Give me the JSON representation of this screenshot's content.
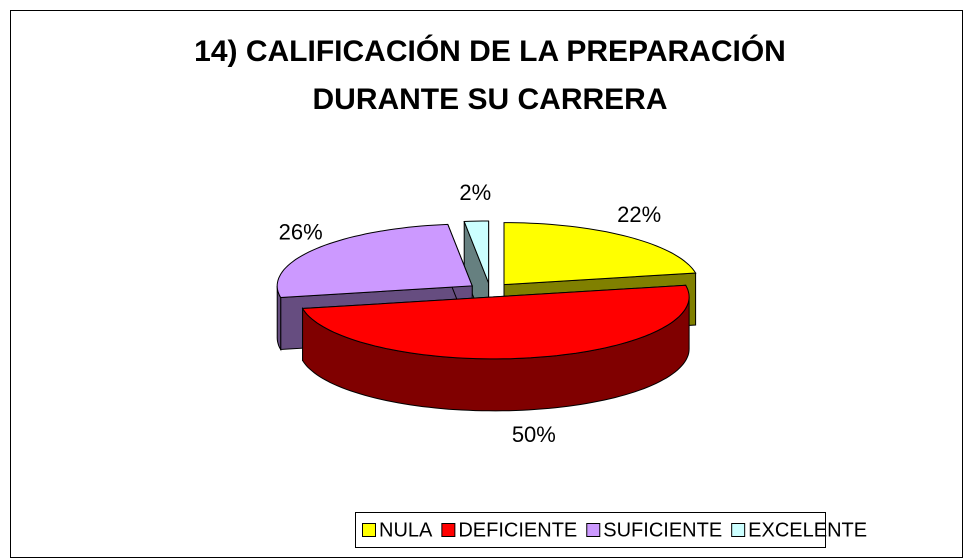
{
  "chart_data": {
    "type": "pie3d",
    "title": "14) CALIFICACIÓN DE LA PREPARACIÓN DURANTE SU CARRERA",
    "categories": [
      "NULA",
      "DEFICIENTE",
      "SUFICIENTE",
      "EXCELENTE"
    ],
    "values": [
      22,
      50,
      26,
      2
    ],
    "value_labels": [
      "22%",
      "50%",
      "26%",
      "2%"
    ],
    "colors": [
      "#ffff00",
      "#ff0000",
      "#cc99ff",
      "#ccffff"
    ],
    "legend": "bottom"
  }
}
